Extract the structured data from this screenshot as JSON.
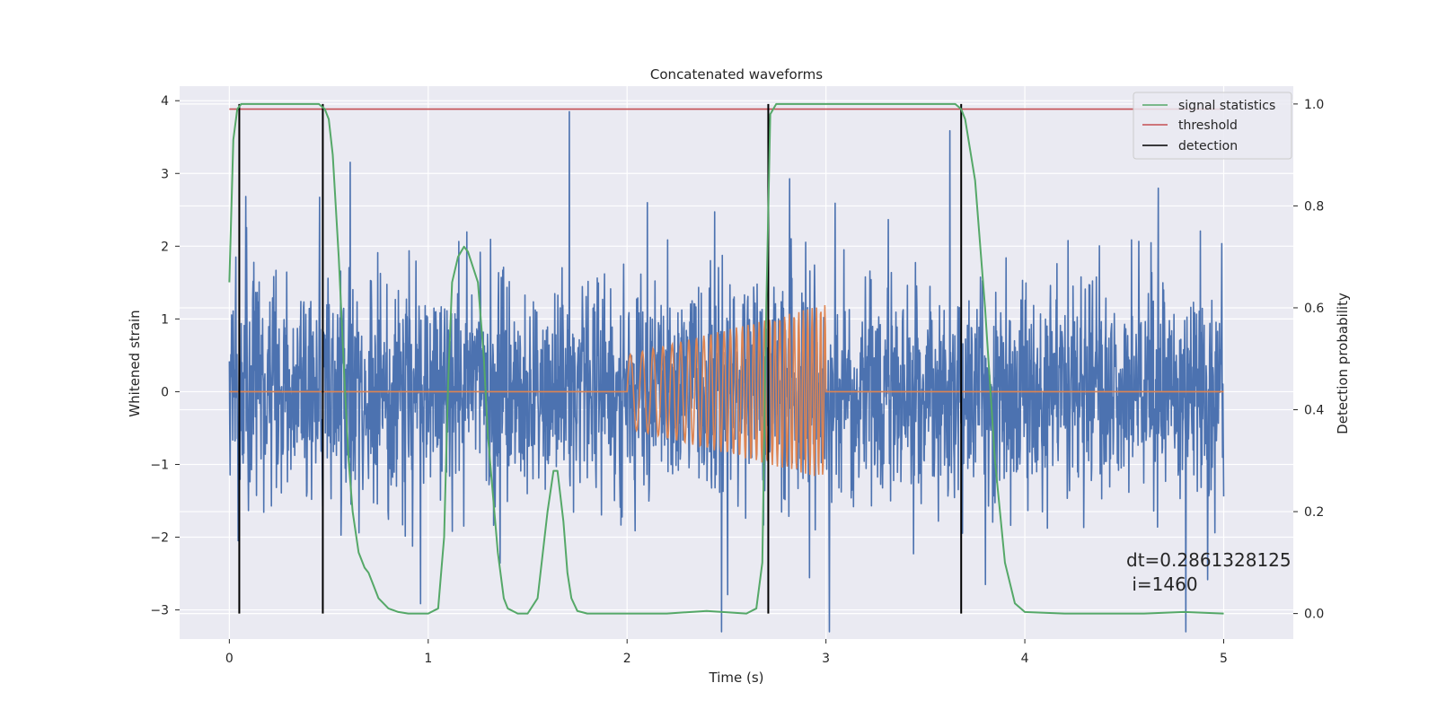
{
  "chart_data": {
    "type": "line",
    "title": "Concatenated waveforms",
    "xlabel": "Time (s)",
    "ylabel": "Whitened strain",
    "ylabel_right": "Detection probability",
    "xlim": [
      -0.25,
      5.35
    ],
    "ylim": [
      -3.4,
      4.2
    ],
    "ylim_right": [
      -0.05,
      1.035
    ],
    "xticks": [
      0,
      1,
      2,
      3,
      4,
      5
    ],
    "yticks": [
      -3,
      -2,
      -1,
      0,
      1,
      2,
      3,
      4
    ],
    "yticks_right": [
      0.0,
      0.2,
      0.4,
      0.6,
      0.8,
      1.0
    ],
    "xtick_labels": [
      "0",
      "1",
      "2",
      "3",
      "4",
      "5"
    ],
    "ytick_labels": [
      "−3",
      "−2",
      "−1",
      "0",
      "1",
      "2",
      "3",
      "4"
    ],
    "ytick_right_labels": [
      "0.0",
      "0.2",
      "0.4",
      "0.6",
      "0.8",
      "1.0"
    ],
    "grid": true,
    "legend": {
      "position": "top-right",
      "entries": [
        {
          "label": "signal statistics",
          "color": "#55a868"
        },
        {
          "label": "threshold",
          "color": "#c44e52"
        },
        {
          "label": "detection",
          "color": "#000000"
        }
      ]
    },
    "annotation": {
      "line1": "dt=0.2861328125",
      "line2": " i=1460"
    },
    "series": [
      {
        "name": "whitened strain",
        "axis": "left",
        "color": "#4c72b0",
        "x_range": [
          0,
          5
        ],
        "noise_std": 1.0,
        "noise_peak_max": 3.85,
        "noise_trough_min": -3.3
      },
      {
        "name": "injected waveform",
        "axis": "left",
        "color": "#dd8452",
        "x_range": [
          0,
          5
        ],
        "chirp": {
          "start": 2.0,
          "end": 3.0,
          "amp_start": 0.5,
          "amp_end": 1.2,
          "freq_start": 15,
          "freq_end": 48
        }
      },
      {
        "name": "signal statistics",
        "axis": "right",
        "color": "#55a868",
        "x": [
          0.0,
          0.02,
          0.04,
          0.06,
          0.08,
          0.1,
          0.2,
          0.3,
          0.4,
          0.45,
          0.48,
          0.5,
          0.52,
          0.55,
          0.58,
          0.6,
          0.62,
          0.65,
          0.68,
          0.7,
          0.72,
          0.75,
          0.8,
          0.85,
          0.9,
          1.0,
          1.05,
          1.08,
          1.1,
          1.12,
          1.15,
          1.18,
          1.2,
          1.25,
          1.28,
          1.3,
          1.35,
          1.38,
          1.4,
          1.45,
          1.5,
          1.55,
          1.6,
          1.63,
          1.65,
          1.68,
          1.7,
          1.72,
          1.75,
          1.8,
          2.0,
          2.2,
          2.4,
          2.6,
          2.65,
          2.68,
          2.7,
          2.72,
          2.75,
          2.8,
          3.0,
          3.2,
          3.4,
          3.6,
          3.65,
          3.68,
          3.7,
          3.75,
          3.8,
          3.85,
          3.9,
          3.95,
          4.0,
          4.2,
          4.4,
          4.6,
          4.8,
          5.0
        ],
        "y": [
          0.65,
          0.93,
          0.99,
          1.0,
          1.0,
          1.0,
          1.0,
          1.0,
          1.0,
          1.0,
          0.99,
          0.97,
          0.9,
          0.7,
          0.45,
          0.3,
          0.2,
          0.12,
          0.09,
          0.08,
          0.06,
          0.03,
          0.01,
          0.003,
          0.0,
          0.0,
          0.01,
          0.15,
          0.45,
          0.65,
          0.7,
          0.72,
          0.71,
          0.65,
          0.5,
          0.35,
          0.12,
          0.03,
          0.01,
          0.0,
          0.0,
          0.03,
          0.2,
          0.28,
          0.28,
          0.18,
          0.08,
          0.03,
          0.005,
          0.0,
          0.0,
          0.0,
          0.005,
          0.0,
          0.01,
          0.1,
          0.6,
          0.98,
          1.0,
          1.0,
          1.0,
          1.0,
          1.0,
          1.0,
          1.0,
          0.99,
          0.97,
          0.85,
          0.6,
          0.3,
          0.1,
          0.02,
          0.003,
          0.0,
          0.0,
          0.0,
          0.003,
          0.0
        ]
      },
      {
        "name": "threshold",
        "axis": "right",
        "color": "#c44e52",
        "x": [
          0,
          5
        ],
        "y": [
          0.99,
          0.99
        ]
      },
      {
        "name": "detection",
        "axis": "right",
        "color": "#000000",
        "type": "vlines",
        "x": [
          0.05,
          0.47,
          2.71,
          3.68
        ],
        "ymin": 0.0,
        "ymax": 1.0
      }
    ]
  }
}
